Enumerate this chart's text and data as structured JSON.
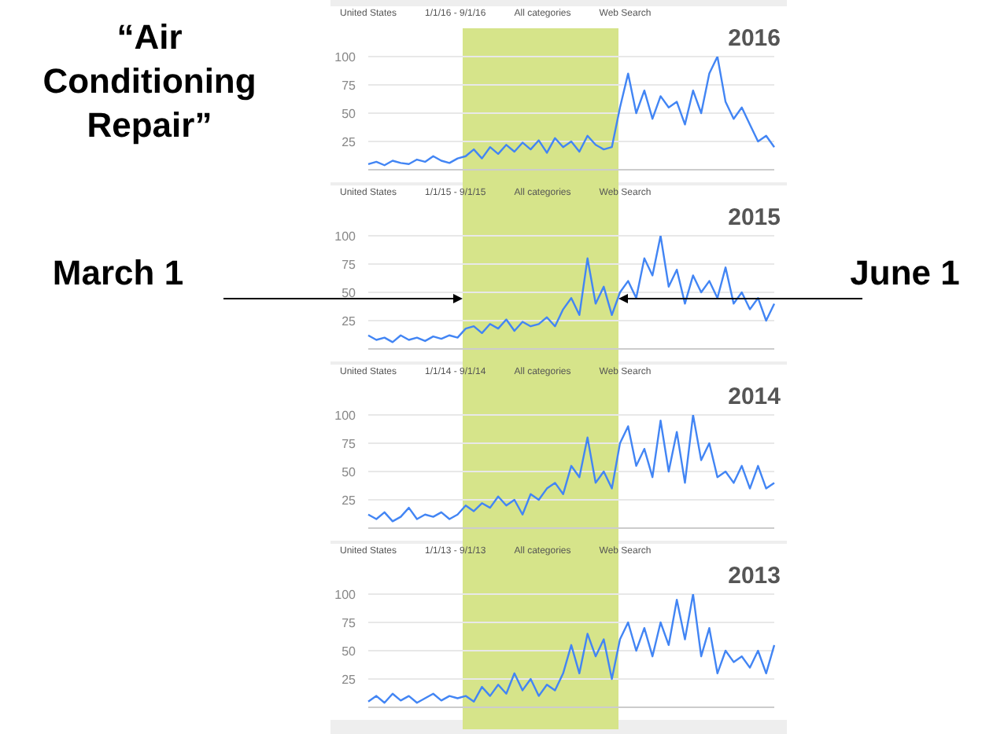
{
  "chart_data": [
    {
      "type": "line",
      "title": "2016",
      "annotations": [
        "United States",
        "1/1/16 - 9/1/16",
        "All categories",
        "Web Search",
        "“Air Conditioning Repair”"
      ],
      "tick_labels": "y",
      "grid": "y",
      "ylim": [
        0,
        100
      ],
      "yticks": [
        25,
        50,
        75,
        100
      ],
      "categories": [
        null,
        null,
        null,
        null,
        null,
        null,
        null,
        null,
        null,
        null,
        null,
        null,
        null,
        null,
        null,
        null,
        null,
        null,
        null,
        null,
        null,
        null,
        null,
        null,
        null,
        null,
        null,
        null,
        null,
        null,
        null,
        null,
        null,
        null,
        null,
        null,
        null,
        null,
        null,
        null,
        null,
        null,
        null,
        null,
        null,
        null,
        null,
        null,
        null,
        null,
        null
      ],
      "series": [
        {
          "color": "#4285f4",
          "values": [
            5,
            7,
            4,
            8,
            6,
            5,
            9,
            7,
            12,
            8,
            6,
            10,
            12,
            18,
            10,
            20,
            14,
            22,
            16,
            24,
            18,
            26,
            15,
            28,
            20,
            25,
            16,
            30,
            22,
            18,
            20,
            55,
            85,
            50,
            70,
            45,
            65,
            55,
            60,
            40,
            70,
            50,
            85,
            100,
            60,
            45,
            55,
            40,
            25,
            30,
            20
          ]
        }
      ]
    },
    {
      "type": "line",
      "title": "2015",
      "annotations": [
        "United States",
        "1/1/15 - 9/1/15",
        "All categories",
        "Web Search",
        "March 1",
        "June 1"
      ],
      "tick_labels": "y",
      "grid": "y",
      "ylim": [
        0,
        100
      ],
      "yticks": [
        25,
        50,
        75,
        100
      ],
      "categories": [
        null,
        null,
        null,
        null,
        null,
        null,
        null,
        null,
        null,
        null,
        null,
        null,
        null,
        null,
        null,
        null,
        null,
        null,
        null,
        null,
        null,
        null,
        null,
        null,
        null,
        null,
        null,
        null,
        null,
        null,
        null,
        null,
        null,
        null,
        null,
        null,
        null,
        null,
        null,
        null,
        null,
        null,
        null,
        null,
        null,
        null,
        null,
        null,
        null,
        null,
        null
      ],
      "series": [
        {
          "color": "#4285f4",
          "values": [
            12,
            8,
            10,
            6,
            12,
            8,
            10,
            7,
            11,
            9,
            12,
            10,
            18,
            20,
            14,
            22,
            18,
            26,
            16,
            24,
            20,
            22,
            28,
            20,
            35,
            45,
            30,
            80,
            40,
            55,
            30,
            50,
            60,
            45,
            80,
            65,
            100,
            55,
            70,
            40,
            65,
            50,
            60,
            45,
            72,
            40,
            50,
            35,
            45,
            25,
            40
          ]
        }
      ]
    },
    {
      "type": "line",
      "title": "2014",
      "annotations": [
        "United States",
        "1/1/14 - 9/1/14",
        "All categories",
        "Web Search"
      ],
      "tick_labels": "y",
      "grid": "y",
      "ylim": [
        0,
        100
      ],
      "yticks": [
        25,
        50,
        75,
        100
      ],
      "categories": [
        null,
        null,
        null,
        null,
        null,
        null,
        null,
        null,
        null,
        null,
        null,
        null,
        null,
        null,
        null,
        null,
        null,
        null,
        null,
        null,
        null,
        null,
        null,
        null,
        null,
        null,
        null,
        null,
        null,
        null,
        null,
        null,
        null,
        null,
        null,
        null,
        null,
        null,
        null,
        null,
        null,
        null,
        null,
        null,
        null,
        null,
        null,
        null,
        null,
        null,
        null
      ],
      "series": [
        {
          "color": "#4285f4",
          "values": [
            12,
            8,
            14,
            6,
            10,
            18,
            8,
            12,
            10,
            14,
            8,
            12,
            20,
            15,
            22,
            18,
            28,
            20,
            25,
            12,
            30,
            25,
            35,
            40,
            30,
            55,
            45,
            80,
            40,
            50,
            35,
            75,
            90,
            55,
            70,
            45,
            95,
            50,
            85,
            40,
            100,
            60,
            75,
            45,
            50,
            40,
            55,
            35,
            55,
            35,
            40
          ]
        }
      ]
    },
    {
      "type": "line",
      "title": "2013",
      "annotations": [
        "United States",
        "1/1/13 - 9/1/13",
        "All categories",
        "Web Search"
      ],
      "tick_labels": "y",
      "grid": "y",
      "ylim": [
        0,
        100
      ],
      "yticks": [
        25,
        50,
        75,
        100
      ],
      "categories": [
        null,
        null,
        null,
        null,
        null,
        null,
        null,
        null,
        null,
        null,
        null,
        null,
        null,
        null,
        null,
        null,
        null,
        null,
        null,
        null,
        null,
        null,
        null,
        null,
        null,
        null,
        null,
        null,
        null,
        null,
        null,
        null,
        null,
        null,
        null,
        null,
        null,
        null,
        null,
        null,
        null,
        null,
        null,
        null,
        null,
        null,
        null,
        null,
        null,
        null,
        null
      ],
      "series": [
        {
          "color": "#4285f4",
          "values": [
            5,
            10,
            4,
            12,
            6,
            10,
            4,
            8,
            12,
            6,
            10,
            8,
            10,
            5,
            18,
            10,
            20,
            12,
            30,
            15,
            25,
            10,
            20,
            15,
            30,
            55,
            30,
            65,
            45,
            60,
            25,
            60,
            75,
            50,
            70,
            45,
            75,
            55,
            95,
            60,
            100,
            45,
            70,
            30,
            50,
            40,
            45,
            35,
            50,
            30,
            55
          ]
        }
      ]
    }
  ]
}
